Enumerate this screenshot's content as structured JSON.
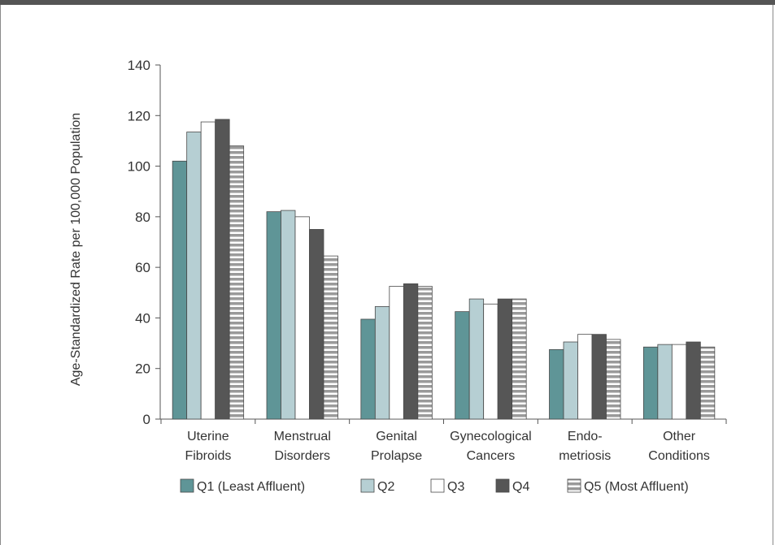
{
  "chart_data": {
    "type": "bar",
    "ylabel": "Age-Standardized Rate per 100,000 Population",
    "xlabel": "",
    "ylim": [
      0,
      140
    ],
    "yticks": [
      0,
      20,
      40,
      60,
      80,
      100,
      120,
      140
    ],
    "categories": [
      [
        "Uterine",
        "Fibroids"
      ],
      [
        "Menstrual",
        "Disorders"
      ],
      [
        "Genital",
        "Prolapse"
      ],
      [
        "Gynecological",
        "Cancers"
      ],
      [
        "Endo-",
        "metriosis"
      ],
      [
        "Other",
        "Conditions"
      ]
    ],
    "series": [
      {
        "name": "Q1 (Least Affluent)",
        "fill": "#5f9597",
        "pattern": "solid",
        "values": [
          102,
          82,
          39.5,
          42.5,
          27.5,
          28.5
        ]
      },
      {
        "name": "Q2",
        "fill": "#b6cfd3",
        "pattern": "solid",
        "values": [
          113.5,
          82.5,
          44.5,
          47.5,
          30.5,
          29.5
        ]
      },
      {
        "name": "Q3",
        "fill": "#ffffff",
        "pattern": "solid",
        "values": [
          117.5,
          80,
          52.5,
          45.5,
          33.5,
          29.5
        ]
      },
      {
        "name": "Q4",
        "fill": "#565656",
        "pattern": "solid",
        "values": [
          118.5,
          75,
          53.5,
          47.5,
          33.5,
          30.5
        ]
      },
      {
        "name": "Q5 (Most Affluent)",
        "fill": "#9a9a9a",
        "pattern": "striped",
        "values": [
          108,
          64.5,
          52.5,
          47.5,
          31.5,
          28.5
        ]
      }
    ],
    "grid": false,
    "legend": "bottom"
  }
}
